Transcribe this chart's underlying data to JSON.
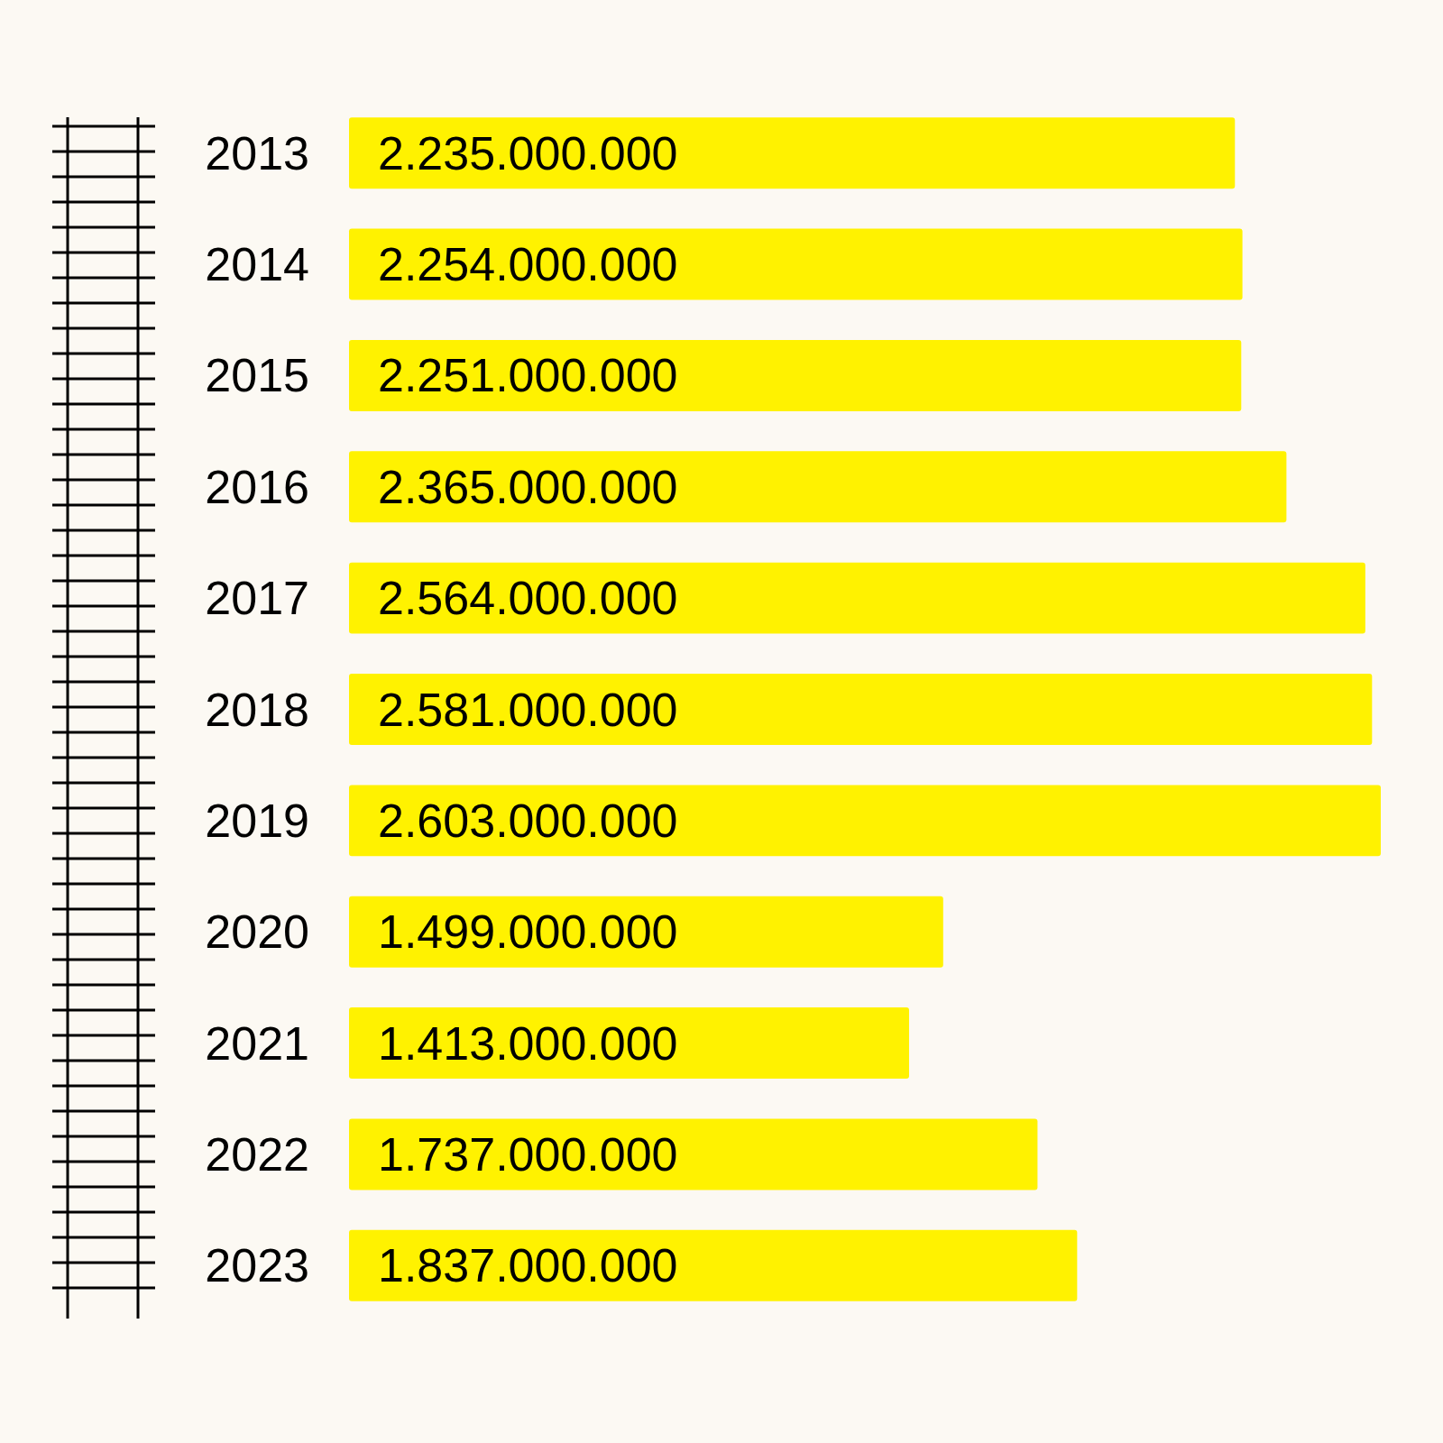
{
  "chart_data": {
    "type": "bar",
    "orientation": "horizontal",
    "categories": [
      "2013",
      "2014",
      "2015",
      "2016",
      "2017",
      "2018",
      "2019",
      "2020",
      "2021",
      "2022",
      "2023"
    ],
    "values": [
      2235000000,
      2254000000,
      2251000000,
      2365000000,
      2564000000,
      2581000000,
      2603000000,
      1499000000,
      1413000000,
      1737000000,
      1837000000
    ],
    "value_labels": [
      "2.235.000.000",
      "2.254.000.000",
      "2.251.000.000",
      "2.365.000.000",
      "2.564.000.000",
      "2.581.000.000",
      "2.603.000.000",
      "1.499.000.000",
      "1.413.000.000",
      "1.737.000.000",
      "1.837.000.000"
    ],
    "color": "#fff200"
  }
}
